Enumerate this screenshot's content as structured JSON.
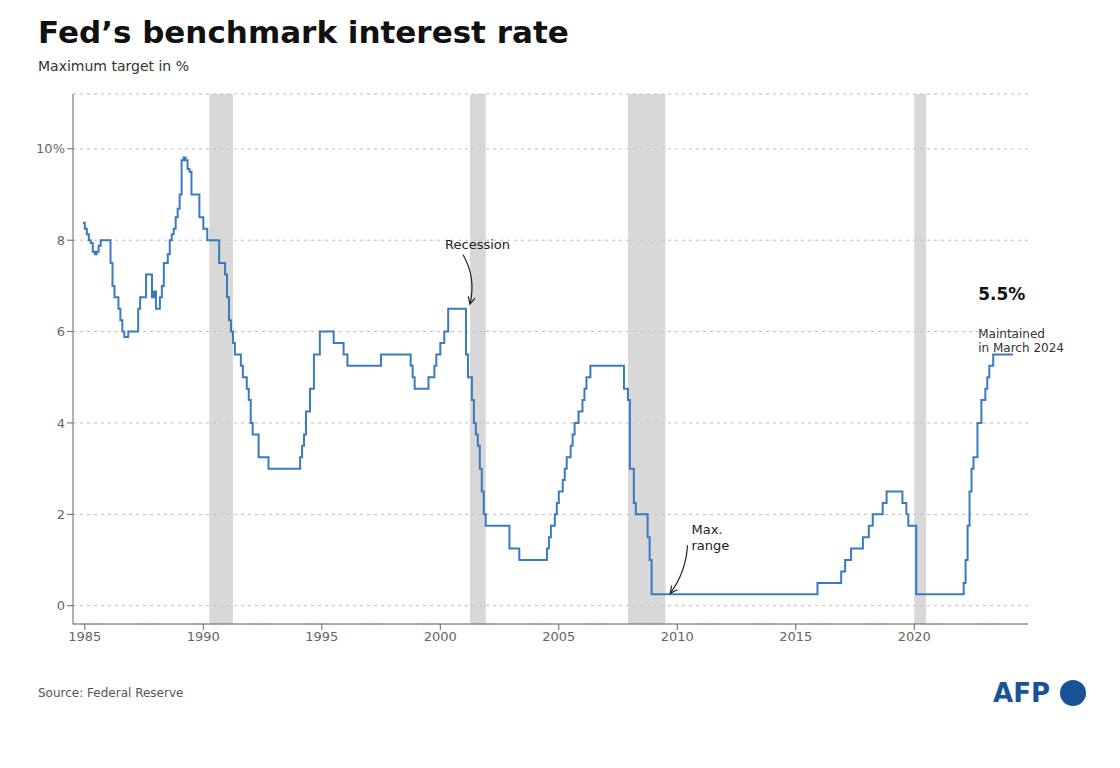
{
  "chart_data": {
    "type": "line",
    "line_style": "step",
    "title": "Fed’s benchmark interest rate",
    "subtitle": "Maximum target in %",
    "source": "Source: Federal Reserve",
    "credit": "AFP",
    "color": "#3a7abf",
    "grid": true,
    "xlim": [
      1984.5,
      2024.8
    ],
    "ylim": [
      -0.4,
      11.2
    ],
    "xticks": [
      1985,
      1990,
      1995,
      2000,
      2005,
      2010,
      2015,
      2020
    ],
    "yticks": [
      0,
      2,
      4,
      6,
      8,
      {
        "value": 10,
        "label": "10%"
      }
    ],
    "recessions": [
      [
        1990.25,
        1991.25
      ],
      [
        2001.25,
        2001.92
      ],
      [
        2007.92,
        2009.5
      ],
      [
        2020.0,
        2020.5
      ]
    ],
    "annotations": [
      {
        "text": "Recession",
        "x": 2000.2,
        "y": 7.9,
        "arrow_x": 2001.25,
        "arrow_y": 6.6
      },
      {
        "text": "Max.\nrange",
        "x": 2010.6,
        "y": 1.5,
        "arrow_x": 2009.7,
        "arrow_y": 0.27
      },
      {
        "text": "5.5%",
        "x": 2022.7,
        "y": 6.6
      },
      {
        "text": "Maintained\nin March 2024",
        "x": 2022.7,
        "y": 6.1
      }
    ],
    "x": [
      1984.917,
      1985.0,
      1985.083,
      1985.167,
      1985.25,
      1985.333,
      1985.417,
      1985.5,
      1985.583,
      1985.667,
      1985.75,
      1985.833,
      1985.917,
      1986.0,
      1986.083,
      1986.167,
      1986.25,
      1986.333,
      1986.417,
      1986.5,
      1986.583,
      1986.667,
      1986.75,
      1986.833,
      1986.917,
      1987.0,
      1987.083,
      1987.167,
      1987.25,
      1987.333,
      1987.417,
      1987.5,
      1987.583,
      1987.667,
      1987.75,
      1987.833,
      1987.917,
      1988.0,
      1988.083,
      1988.167,
      1988.25,
      1988.333,
      1988.417,
      1988.5,
      1988.583,
      1988.667,
      1988.75,
      1988.833,
      1988.917,
      1989.0,
      1989.083,
      1989.167,
      1989.25,
      1989.333,
      1989.417,
      1989.5,
      1989.583,
      1989.667,
      1989.75,
      1989.833,
      1989.917,
      1990.0,
      1990.083,
      1990.167,
      1990.25,
      1990.333,
      1990.417,
      1990.5,
      1990.583,
      1990.667,
      1990.75,
      1990.833,
      1990.917,
      1991.0,
      1991.083,
      1991.167,
      1991.25,
      1991.333,
      1991.417,
      1991.5,
      1991.583,
      1991.667,
      1991.75,
      1991.833,
      1991.917,
      1992.0,
      1992.083,
      1992.167,
      1992.25,
      1992.333,
      1992.417,
      1992.5,
      1992.583,
      1992.667,
      1992.75,
      1992.833,
      1992.917,
      1993.0,
      1993.083,
      1993.167,
      1993.25,
      1993.333,
      1993.417,
      1993.5,
      1993.583,
      1993.667,
      1993.75,
      1993.833,
      1993.917,
      1994.0,
      1994.083,
      1994.167,
      1994.25,
      1994.333,
      1994.417,
      1994.5,
      1994.583,
      1994.667,
      1994.75,
      1994.833,
      1994.917,
      1995.0,
      1995.083,
      1995.167,
      1995.25,
      1995.333,
      1995.417,
      1995.5,
      1995.583,
      1995.667,
      1995.75,
      1995.833,
      1995.917,
      1996.0,
      1996.083,
      1996.167,
      1996.25,
      1996.333,
      1996.417,
      1996.5,
      1996.583,
      1996.667,
      1996.75,
      1996.833,
      1996.917,
      1997.0,
      1997.083,
      1997.167,
      1997.25,
      1997.333,
      1997.417,
      1997.5,
      1997.583,
      1997.667,
      1997.75,
      1997.833,
      1997.917,
      1998.0,
      1998.083,
      1998.167,
      1998.25,
      1998.333,
      1998.417,
      1998.5,
      1998.583,
      1998.667,
      1998.75,
      1998.833,
      1998.917,
      1999.0,
      1999.083,
      1999.167,
      1999.25,
      1999.333,
      1999.417,
      1999.5,
      1999.583,
      1999.667,
      1999.75,
      1999.833,
      1999.917,
      2000.0,
      2000.083,
      2000.167,
      2000.25,
      2000.333,
      2000.417,
      2000.5,
      2000.583,
      2000.667,
      2000.75,
      2000.833,
      2000.917,
      2001.0,
      2001.083,
      2001.167,
      2001.25,
      2001.333,
      2001.417,
      2001.5,
      2001.583,
      2001.667,
      2001.75,
      2001.833,
      2001.917,
      2002.0,
      2002.083,
      2002.167,
      2002.25,
      2002.333,
      2002.417,
      2002.5,
      2002.583,
      2002.667,
      2002.75,
      2002.833,
      2002.917,
      2003.0,
      2003.083,
      2003.167,
      2003.25,
      2003.333,
      2003.417,
      2003.5,
      2003.583,
      2003.667,
      2003.75,
      2003.833,
      2003.917,
      2004.0,
      2004.083,
      2004.167,
      2004.25,
      2004.333,
      2004.417,
      2004.5,
      2004.583,
      2004.667,
      2004.75,
      2004.833,
      2004.917,
      2005.0,
      2005.083,
      2005.167,
      2005.25,
      2005.333,
      2005.417,
      2005.5,
      2005.583,
      2005.667,
      2005.75,
      2005.833,
      2005.917,
      2006.0,
      2006.083,
      2006.167,
      2006.25,
      2006.333,
      2006.417,
      2006.5,
      2006.583,
      2006.667,
      2006.75,
      2006.833,
      2006.917,
      2007.0,
      2007.083,
      2007.167,
      2007.25,
      2007.333,
      2007.417,
      2007.5,
      2007.583,
      2007.667,
      2007.75,
      2007.833,
      2007.917,
      2008.0,
      2008.083,
      2008.167,
      2008.25,
      2008.333,
      2008.417,
      2008.5,
      2008.583,
      2008.667,
      2008.75,
      2008.833,
      2008.917,
      2009.0,
      2009.083,
      2009.167,
      2009.25,
      2009.333,
      2009.417,
      2009.5,
      2009.583,
      2009.667,
      2009.75,
      2009.833,
      2009.917,
      2010.0,
      2010.083,
      2010.167,
      2010.25,
      2010.333,
      2010.417,
      2010.5,
      2010.583,
      2010.667,
      2010.75,
      2010.833,
      2010.917,
      2011.0,
      2011.083,
      2011.167,
      2011.25,
      2011.333,
      2011.417,
      2011.5,
      2011.583,
      2011.667,
      2011.75,
      2011.833,
      2011.917,
      2012.0,
      2012.083,
      2012.167,
      2012.25,
      2012.333,
      2012.417,
      2012.5,
      2012.583,
      2012.667,
      2012.75,
      2012.833,
      2012.917,
      2013.0,
      2013.083,
      2013.167,
      2013.25,
      2013.333,
      2013.417,
      2013.5,
      2013.583,
      2013.667,
      2013.75,
      2013.833,
      2013.917,
      2014.0,
      2014.083,
      2014.167,
      2014.25,
      2014.333,
      2014.417,
      2014.5,
      2014.583,
      2014.667,
      2014.75,
      2014.833,
      2014.917,
      2015.0,
      2015.083,
      2015.167,
      2015.25,
      2015.333,
      2015.417,
      2015.5,
      2015.583,
      2015.667,
      2015.75,
      2015.833,
      2015.917,
      2016.0,
      2016.083,
      2016.167,
      2016.25,
      2016.333,
      2016.417,
      2016.5,
      2016.583,
      2016.667,
      2016.75,
      2016.833,
      2016.917,
      2017.0,
      2017.083,
      2017.167,
      2017.25,
      2017.333,
      2017.417,
      2017.5,
      2017.583,
      2017.667,
      2017.75,
      2017.833,
      2017.917,
      2018.0,
      2018.083,
      2018.167,
      2018.25,
      2018.333,
      2018.417,
      2018.5,
      2018.583,
      2018.667,
      2018.75,
      2018.833,
      2018.917,
      2019.0,
      2019.083,
      2019.167,
      2019.25,
      2019.333,
      2019.417,
      2019.5,
      2019.583,
      2019.667,
      2019.75,
      2019.833,
      2019.917,
      2020.0,
      2020.083,
      2020.167,
      2020.25,
      2020.333,
      2020.417,
      2020.5,
      2020.583,
      2020.667,
      2020.75,
      2020.833,
      2020.917,
      2021.0,
      2021.083,
      2021.167,
      2021.25,
      2021.333,
      2021.417,
      2021.5,
      2021.583,
      2021.667,
      2021.75,
      2021.833,
      2021.917,
      2022.0,
      2022.083,
      2022.167,
      2022.25,
      2022.333,
      2022.417,
      2022.5,
      2022.583,
      2022.667,
      2022.75,
      2022.833,
      2022.917,
      2023.0,
      2023.083,
      2023.167,
      2023.25,
      2023.333,
      2023.417,
      2023.5,
      2023.583,
      2023.667,
      2023.75,
      2023.833,
      2023.917,
      2024.0,
      2024.083,
      2024.167
    ],
    "values": [
      8.38,
      8.25,
      8.13,
      8.0,
      7.94,
      7.75,
      7.69,
      7.75,
      7.88,
      8.0,
      8.0,
      8.0,
      8.0,
      8.0,
      7.5,
      7.0,
      6.75,
      6.75,
      6.5,
      6.25,
      6.0,
      5.88,
      5.88,
      6.0,
      6.0,
      6.0,
      6.0,
      6.0,
      6.5,
      6.75,
      6.75,
      6.75,
      7.25,
      7.25,
      7.25,
      6.75,
      6.88,
      6.5,
      6.5,
      6.75,
      7.0,
      7.5,
      7.5,
      7.69,
      8.0,
      8.13,
      8.25,
      8.5,
      8.69,
      9.0,
      9.75,
      9.81,
      9.75,
      9.56,
      9.5,
      9.0,
      9.0,
      9.0,
      9.0,
      8.5,
      8.5,
      8.25,
      8.25,
      8.0,
      8.0,
      8.0,
      8.0,
      8.0,
      8.0,
      7.5,
      7.5,
      7.5,
      7.25,
      6.75,
      6.25,
      6.0,
      5.75,
      5.5,
      5.5,
      5.5,
      5.25,
      5.0,
      5.0,
      4.75,
      4.5,
      4.0,
      3.75,
      3.75,
      3.75,
      3.25,
      3.25,
      3.25,
      3.25,
      3.25,
      3.0,
      3.0,
      3.0,
      3.0,
      3.0,
      3.0,
      3.0,
      3.0,
      3.0,
      3.0,
      3.0,
      3.0,
      3.0,
      3.0,
      3.0,
      3.0,
      3.25,
      3.5,
      3.75,
      4.25,
      4.25,
      4.75,
      4.75,
      5.5,
      5.5,
      5.5,
      6.0,
      6.0,
      6.0,
      6.0,
      6.0,
      6.0,
      6.0,
      5.75,
      5.75,
      5.75,
      5.75,
      5.75,
      5.5,
      5.5,
      5.25,
      5.25,
      5.25,
      5.25,
      5.25,
      5.25,
      5.25,
      5.25,
      5.25,
      5.25,
      5.25,
      5.25,
      5.25,
      5.25,
      5.25,
      5.25,
      5.25,
      5.5,
      5.5,
      5.5,
      5.5,
      5.5,
      5.5,
      5.5,
      5.5,
      5.5,
      5.5,
      5.5,
      5.5,
      5.5,
      5.5,
      5.5,
      5.25,
      5.0,
      4.75,
      4.75,
      4.75,
      4.75,
      4.75,
      4.75,
      4.75,
      5.0,
      5.0,
      5.0,
      5.25,
      5.5,
      5.5,
      5.75,
      5.75,
      6.0,
      6.0,
      6.5,
      6.5,
      6.5,
      6.5,
      6.5,
      6.5,
      6.5,
      6.5,
      6.5,
      5.5,
      5.0,
      5.0,
      4.5,
      4.0,
      3.75,
      3.5,
      3.0,
      2.5,
      2.0,
      1.75,
      1.75,
      1.75,
      1.75,
      1.75,
      1.75,
      1.75,
      1.75,
      1.75,
      1.75,
      1.75,
      1.75,
      1.25,
      1.25,
      1.25,
      1.25,
      1.25,
      1.0,
      1.0,
      1.0,
      1.0,
      1.0,
      1.0,
      1.0,
      1.0,
      1.0,
      1.0,
      1.0,
      1.0,
      1.0,
      1.0,
      1.25,
      1.5,
      1.75,
      1.75,
      2.0,
      2.25,
      2.5,
      2.5,
      2.75,
      3.0,
      3.25,
      3.25,
      3.5,
      3.75,
      4.0,
      4.0,
      4.25,
      4.25,
      4.5,
      4.75,
      5.0,
      5.0,
      5.25,
      5.25,
      5.25,
      5.25,
      5.25,
      5.25,
      5.25,
      5.25,
      5.25,
      5.25,
      5.25,
      5.25,
      5.25,
      5.25,
      5.25,
      5.25,
      5.25,
      4.75,
      4.75,
      4.5,
      3.0,
      3.0,
      2.25,
      2.0,
      2.0,
      2.0,
      2.0,
      2.0,
      2.0,
      1.5,
      1.0,
      0.25,
      0.25,
      0.25,
      0.25,
      0.25,
      0.25,
      0.25,
      0.25,
      0.25,
      0.25,
      0.25,
      0.25,
      0.25,
      0.25,
      0.25,
      0.25,
      0.25,
      0.25,
      0.25,
      0.25,
      0.25,
      0.25,
      0.25,
      0.25,
      0.25,
      0.25,
      0.25,
      0.25,
      0.25,
      0.25,
      0.25,
      0.25,
      0.25,
      0.25,
      0.25,
      0.25,
      0.25,
      0.25,
      0.25,
      0.25,
      0.25,
      0.25,
      0.25,
      0.25,
      0.25,
      0.25,
      0.25,
      0.25,
      0.25,
      0.25,
      0.25,
      0.25,
      0.25,
      0.25,
      0.25,
      0.25,
      0.25,
      0.25,
      0.25,
      0.25,
      0.25,
      0.25,
      0.25,
      0.25,
      0.25,
      0.25,
      0.25,
      0.25,
      0.25,
      0.25,
      0.25,
      0.25,
      0.25,
      0.25,
      0.25,
      0.25,
      0.25,
      0.25,
      0.25,
      0.25,
      0.25,
      0.25,
      0.25,
      0.25,
      0.5,
      0.5,
      0.5,
      0.5,
      0.5,
      0.5,
      0.5,
      0.5,
      0.5,
      0.5,
      0.5,
      0.5,
      0.75,
      0.75,
      1.0,
      1.0,
      1.0,
      1.25,
      1.25,
      1.25,
      1.25,
      1.25,
      1.25,
      1.5,
      1.5,
      1.5,
      1.75,
      1.75,
      2.0,
      2.0,
      2.0,
      2.0,
      2.0,
      2.25,
      2.25,
      2.5,
      2.5,
      2.5,
      2.5,
      2.5,
      2.5,
      2.5,
      2.5,
      2.25,
      2.25,
      2.0,
      1.75,
      1.75,
      1.75,
      1.75,
      0.25,
      0.25,
      0.25,
      0.25,
      0.25,
      0.25,
      0.25,
      0.25,
      0.25,
      0.25,
      0.25,
      0.25,
      0.25,
      0.25,
      0.25,
      0.25,
      0.25,
      0.25,
      0.25,
      0.25,
      0.25,
      0.25,
      0.25,
      0.25,
      0.5,
      1.0,
      1.75,
      2.5,
      3.0,
      3.25,
      3.25,
      4.0,
      4.0,
      4.5,
      4.5,
      4.75,
      5.0,
      5.25,
      5.25,
      5.5,
      5.5,
      5.5,
      5.5,
      5.5,
      5.5,
      5.5,
      5.5,
      5.5,
      5.5,
      5.5
    ]
  }
}
